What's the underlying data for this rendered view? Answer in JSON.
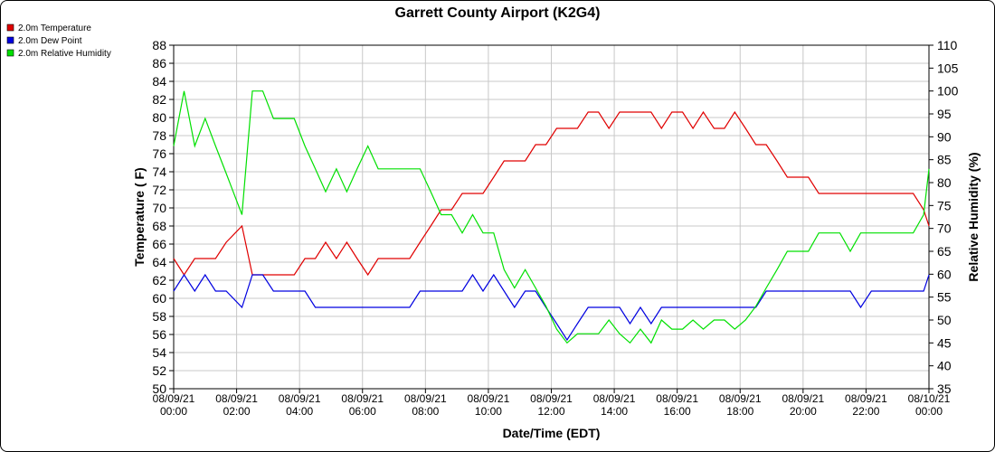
{
  "chart_data": {
    "type": "line",
    "title": "Garrett County Airport (K2G4)",
    "xlabel": "Date/Time (EDT)",
    "ylabel_left": "Temperature ( F)",
    "ylabel_right": "Relative Humidity (%)",
    "ylim_left": [
      50,
      88
    ],
    "yticks_left": [
      50,
      52,
      54,
      56,
      58,
      60,
      62,
      64,
      66,
      68,
      70,
      72,
      74,
      76,
      78,
      80,
      82,
      84,
      86,
      88
    ],
    "ylim_right": [
      35,
      110
    ],
    "yticks_right": [
      35,
      40,
      45,
      50,
      55,
      60,
      65,
      70,
      75,
      80,
      85,
      90,
      95,
      100,
      105,
      110
    ],
    "xlim": [
      0,
      24
    ],
    "x_ticks": [
      {
        "x": 0,
        "date": "08/09/21",
        "time": "00:00"
      },
      {
        "x": 2,
        "date": "08/09/21",
        "time": "02:00"
      },
      {
        "x": 4,
        "date": "08/09/21",
        "time": "04:00"
      },
      {
        "x": 6,
        "date": "08/09/21",
        "time": "06:00"
      },
      {
        "x": 8,
        "date": "08/09/21",
        "time": "08:00"
      },
      {
        "x": 10,
        "date": "08/09/21",
        "time": "10:00"
      },
      {
        "x": 12,
        "date": "08/09/21",
        "time": "12:00"
      },
      {
        "x": 14,
        "date": "08/09/21",
        "time": "14:00"
      },
      {
        "x": 16,
        "date": "08/09/21",
        "time": "16:00"
      },
      {
        "x": 18,
        "date": "08/09/21",
        "time": "18:00"
      },
      {
        "x": 20,
        "date": "08/09/21",
        "time": "20:00"
      },
      {
        "x": 22,
        "date": "08/09/21",
        "time": "22:00"
      },
      {
        "x": 24,
        "date": "08/10/21",
        "time": "00:00"
      }
    ],
    "grid": true,
    "legend_placement": "top-left",
    "series": [
      {
        "name": "2.0m Temperature",
        "color": "#e00000",
        "axis": "left",
        "x": [
          0,
          0.33,
          0.67,
          1,
          1.33,
          1.67,
          2.17,
          2.5,
          2.83,
          3.17,
          3.5,
          3.83,
          4.17,
          4.5,
          4.83,
          5.17,
          5.5,
          5.83,
          6.17,
          6.5,
          6.83,
          7.17,
          7.5,
          7.83,
          8.17,
          8.5,
          8.83,
          9.17,
          9.5,
          9.83,
          10.17,
          10.5,
          10.83,
          11.17,
          11.5,
          11.83,
          12.17,
          12.5,
          12.83,
          13.17,
          13.5,
          13.83,
          14.17,
          14.5,
          14.83,
          15.17,
          15.5,
          15.83,
          16.17,
          16.5,
          16.83,
          17.17,
          17.5,
          17.83,
          18.17,
          18.5,
          18.83,
          19.17,
          19.5,
          19.83,
          20.17,
          20.5,
          20.83,
          21.17,
          21.5,
          21.83,
          22.17,
          22.5,
          22.83,
          23.17,
          23.5,
          23.83,
          24
        ],
        "values": [
          64.4,
          62.6,
          64.4,
          64.4,
          64.4,
          66.2,
          68,
          62.6,
          62.6,
          62.6,
          62.6,
          62.6,
          64.4,
          64.4,
          66.2,
          64.4,
          66.2,
          64.4,
          62.6,
          64.4,
          64.4,
          64.4,
          64.4,
          66.2,
          68,
          69.8,
          69.8,
          71.6,
          71.6,
          71.6,
          73.4,
          75.2,
          75.2,
          75.2,
          77,
          77,
          78.8,
          78.8,
          78.8,
          80.6,
          80.6,
          78.8,
          80.6,
          80.6,
          80.6,
          80.6,
          78.8,
          80.6,
          80.6,
          78.8,
          80.6,
          78.8,
          78.8,
          80.6,
          78.8,
          77,
          77,
          75.2,
          73.4,
          73.4,
          73.4,
          71.6,
          71.6,
          71.6,
          71.6,
          71.6,
          71.6,
          71.6,
          71.6,
          71.6,
          71.6,
          69.8,
          68
        ]
      },
      {
        "name": "2.0m Dew Point",
        "color": "#0000e0",
        "axis": "left",
        "x": [
          0,
          0.33,
          0.67,
          1,
          1.33,
          1.67,
          2.17,
          2.5,
          2.83,
          3.17,
          3.5,
          3.83,
          4.17,
          4.5,
          4.83,
          5.17,
          5.5,
          5.83,
          6.17,
          6.5,
          6.83,
          7.17,
          7.5,
          7.83,
          8.17,
          8.5,
          8.83,
          9.17,
          9.5,
          9.83,
          10.17,
          10.5,
          10.83,
          11.17,
          11.5,
          11.83,
          12.17,
          12.5,
          12.83,
          13.17,
          13.5,
          13.83,
          14.17,
          14.5,
          14.83,
          15.17,
          15.5,
          15.83,
          16.17,
          16.5,
          16.83,
          17.17,
          17.5,
          17.83,
          18.17,
          18.5,
          18.83,
          19.17,
          19.5,
          19.83,
          20.17,
          20.5,
          20.83,
          21.17,
          21.5,
          21.83,
          22.17,
          22.5,
          22.83,
          23.17,
          23.5,
          23.83,
          24
        ],
        "values": [
          60.8,
          62.6,
          60.8,
          62.6,
          60.8,
          60.8,
          59,
          62.6,
          62.6,
          60.8,
          60.8,
          60.8,
          60.8,
          59,
          59,
          59,
          59,
          59,
          59,
          59,
          59,
          59,
          59,
          60.8,
          60.8,
          60.8,
          60.8,
          60.8,
          62.6,
          60.8,
          62.6,
          60.8,
          59,
          60.8,
          60.8,
          59,
          57.2,
          55.4,
          57.2,
          59,
          59,
          59,
          59,
          57.2,
          59,
          57.2,
          59,
          59,
          59,
          59,
          59,
          59,
          59,
          59,
          59,
          59,
          60.8,
          60.8,
          60.8,
          60.8,
          60.8,
          60.8,
          60.8,
          60.8,
          60.8,
          59,
          60.8,
          60.8,
          60.8,
          60.8,
          60.8,
          60.8,
          62.6
        ]
      },
      {
        "name": "2.0m Relative Humidity",
        "color": "#00e000",
        "axis": "right",
        "x": [
          0,
          0.33,
          0.67,
          1,
          1.33,
          1.67,
          2.17,
          2.5,
          2.83,
          3.17,
          3.5,
          3.83,
          4.17,
          4.5,
          4.83,
          5.17,
          5.5,
          5.83,
          6.17,
          6.5,
          6.83,
          7.17,
          7.5,
          7.83,
          8.17,
          8.5,
          8.83,
          9.17,
          9.5,
          9.83,
          10.17,
          10.5,
          10.83,
          11.17,
          11.5,
          11.83,
          12.17,
          12.5,
          12.83,
          13.17,
          13.5,
          13.83,
          14.17,
          14.5,
          14.83,
          15.17,
          15.5,
          15.83,
          16.17,
          16.5,
          16.83,
          17.17,
          17.5,
          17.83,
          18.17,
          18.5,
          18.83,
          19.17,
          19.5,
          19.83,
          20.17,
          20.5,
          20.83,
          21.17,
          21.5,
          21.83,
          22.17,
          22.5,
          22.83,
          23.17,
          23.5,
          23.83,
          24
        ],
        "values": [
          88,
          100,
          88,
          94,
          88,
          82,
          73,
          100,
          100,
          94,
          94,
          94,
          88,
          83,
          78,
          83,
          78,
          83,
          88,
          83,
          83,
          83,
          83,
          83,
          78,
          73,
          73,
          69,
          73,
          69,
          69,
          61,
          57,
          61,
          57,
          53,
          48,
          45,
          47,
          47,
          47,
          50,
          47,
          45,
          48,
          45,
          50,
          48,
          48,
          50,
          48,
          50,
          50,
          48,
          50,
          53,
          57,
          61,
          65,
          65,
          65,
          69,
          69,
          69,
          65,
          69,
          69,
          69,
          69,
          69,
          69,
          73,
          83
        ]
      }
    ]
  }
}
